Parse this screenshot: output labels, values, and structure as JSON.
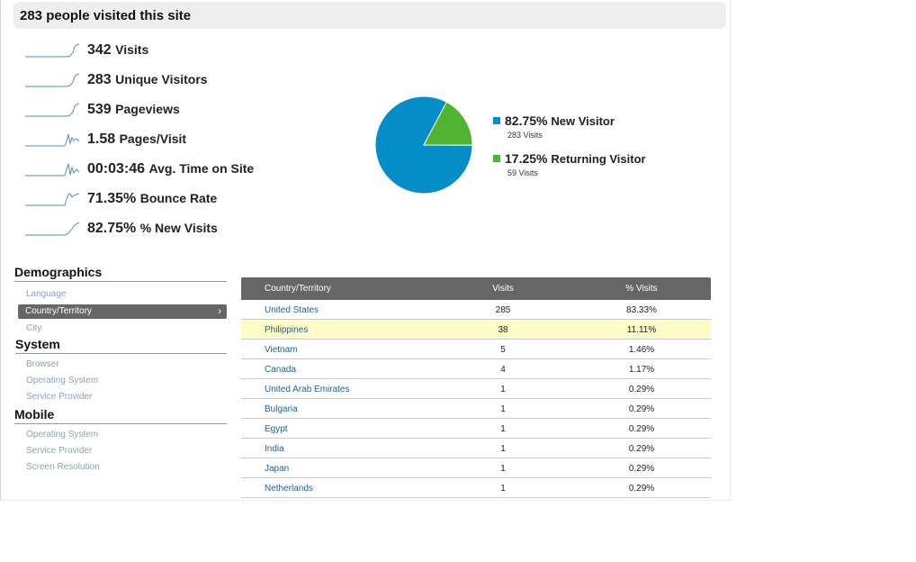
{
  "header": {
    "title": "283 people visited this site"
  },
  "metrics": [
    {
      "value": "342",
      "label": "Visits"
    },
    {
      "value": "283",
      "label": "Unique Visitors"
    },
    {
      "value": "539",
      "label": "Pageviews"
    },
    {
      "value": "1.58",
      "label": "Pages/Visit"
    },
    {
      "value": "00:03:46",
      "label": "Avg. Time on Site"
    },
    {
      "value": "71.35%",
      "label": "Bounce Rate"
    },
    {
      "value": "82.75%",
      "label": "% New Visits"
    }
  ],
  "chart_data": {
    "type": "pie",
    "categories": [
      "New Visitor",
      "Returning Visitor"
    ],
    "values": [
      82.75,
      17.25
    ],
    "visits": [
      283,
      59
    ],
    "colors": [
      "#058dc7",
      "#50b432"
    ],
    "legend_placement": "right"
  },
  "legend": [
    {
      "pct": "82.75%",
      "label": "New Visitor",
      "sub": "283 Visits",
      "color": "#058dc7"
    },
    {
      "pct": "17.25%",
      "label": "Returning Visitor",
      "sub": "59 Visits",
      "color": "#50b432"
    }
  ],
  "sidebar": {
    "demographics": {
      "heading": "Demographics",
      "items": [
        "Language",
        "Country/Territory",
        "City"
      ]
    },
    "system": {
      "heading": "System",
      "items": [
        "Browser",
        "Operating System",
        "Service Provider"
      ]
    },
    "mobile": {
      "heading": "Mobile",
      "items": [
        "Operating System",
        "Service Provider",
        "Screen Resolution"
      ]
    }
  },
  "table": {
    "headers": [
      "Country/Territory",
      "Visits",
      "% Visits"
    ],
    "rows": [
      [
        "United States",
        "285",
        "83.33%"
      ],
      [
        "Philippines",
        "38",
        "11.11%"
      ],
      [
        "Vietnam",
        "5",
        "1.46%"
      ],
      [
        "Canada",
        "4",
        "1.17%"
      ],
      [
        "United Arab Emirates",
        "1",
        "0.29%"
      ],
      [
        "Bulgaria",
        "1",
        "0.29%"
      ],
      [
        "Egypt",
        "1",
        "0.29%"
      ],
      [
        "India",
        "1",
        "0.29%"
      ],
      [
        "Japan",
        "1",
        "0.29%"
      ],
      [
        "Netherlands",
        "1",
        "0.29%"
      ]
    ]
  }
}
